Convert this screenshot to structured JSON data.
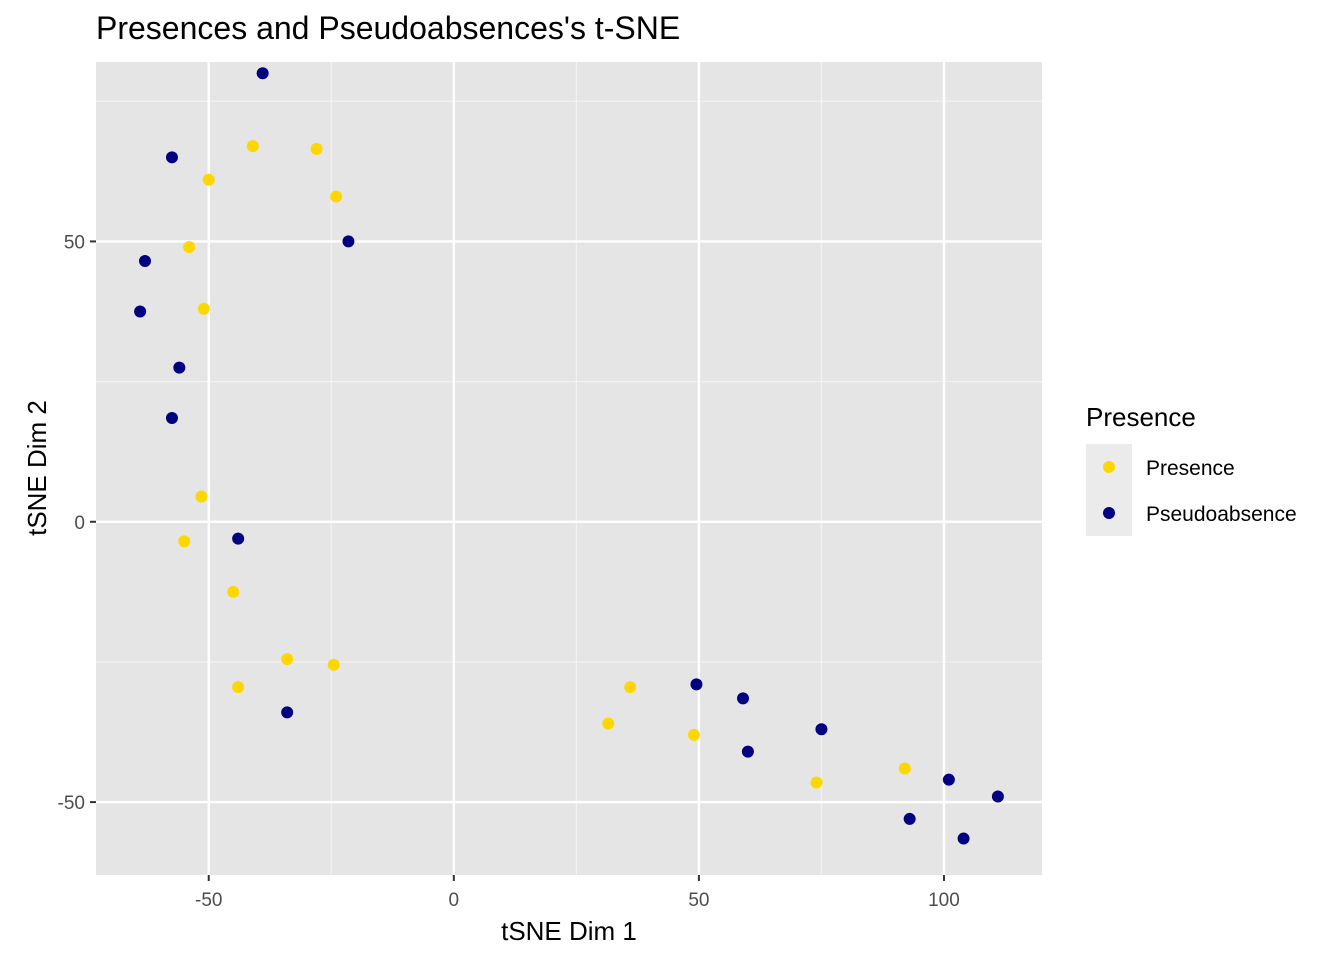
{
  "chart_data": {
    "type": "scatter",
    "title": "Presences and Pseudoabsences's t-SNE",
    "xlabel": "tSNE Dim 1",
    "ylabel": "tSNE Dim 2",
    "xlim": [
      -73,
      120
    ],
    "ylim": [
      -63,
      82
    ],
    "x_ticks": [
      -50,
      0,
      50,
      100
    ],
    "x_tick_labels": [
      "-50",
      "0",
      "50",
      "100"
    ],
    "y_ticks": [
      -50,
      0,
      50
    ],
    "y_tick_labels": [
      "-50",
      "0",
      "50"
    ],
    "grid": true,
    "panel_background": "#e5e5e5",
    "legend": {
      "title": "Presence",
      "placement": "right"
    },
    "series": [
      {
        "name": "Presence",
        "color": "#ffd700",
        "points": [
          [
            -41,
            67
          ],
          [
            -28,
            66.5
          ],
          [
            -50,
            61
          ],
          [
            -24,
            58
          ],
          [
            -54,
            49
          ],
          [
            -51,
            38
          ],
          [
            -51.5,
            4.5
          ],
          [
            -55,
            -3.5
          ],
          [
            -45,
            -12.5
          ],
          [
            -34,
            -24.5
          ],
          [
            -24.5,
            -25.5
          ],
          [
            -44,
            -29.5
          ],
          [
            36,
            -29.5
          ],
          [
            31.5,
            -36
          ],
          [
            49,
            -38
          ],
          [
            74,
            -46.5
          ],
          [
            92,
            -44
          ]
        ]
      },
      {
        "name": "Pseudoabsence",
        "color": "#000080",
        "points": [
          [
            -39,
            80
          ],
          [
            -57.5,
            65
          ],
          [
            -21.5,
            50
          ],
          [
            -63,
            46.5
          ],
          [
            -64,
            37.5
          ],
          [
            -56,
            27.5
          ],
          [
            -57.5,
            18.5
          ],
          [
            -44,
            -3
          ],
          [
            -34,
            -34
          ],
          [
            49.5,
            -29
          ],
          [
            59,
            -31.5
          ],
          [
            75,
            -37
          ],
          [
            60,
            -41
          ],
          [
            101,
            -46
          ],
          [
            111,
            -49
          ],
          [
            93,
            -53
          ],
          [
            104,
            -56.5
          ]
        ]
      }
    ]
  }
}
